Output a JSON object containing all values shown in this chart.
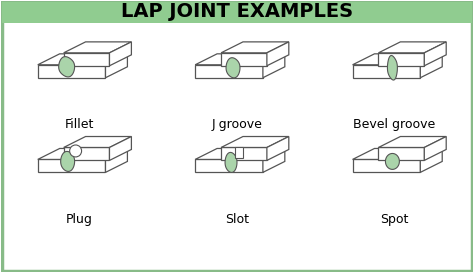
{
  "title": "LAP JOINT EXAMPLES",
  "title_bg": "#90cc90",
  "title_fontsize": 14,
  "title_fontweight": "bold",
  "bg_color": "#ffffff",
  "outer_border_color": "#88bb88",
  "labels": [
    "Fillet",
    "J groove",
    "Bevel groove",
    "Plug",
    "Slot",
    "Spot"
  ],
  "label_fontsize": 9,
  "line_color": "#555555",
  "fill_color": "#ffffff",
  "weld_green_dark": "#6aaa6a",
  "weld_green_light": "#aad4aa",
  "grid_cols": [
    79,
    237,
    395
  ],
  "grid_rows": [
    195,
    100
  ],
  "label_rows": [
    148,
    53
  ]
}
